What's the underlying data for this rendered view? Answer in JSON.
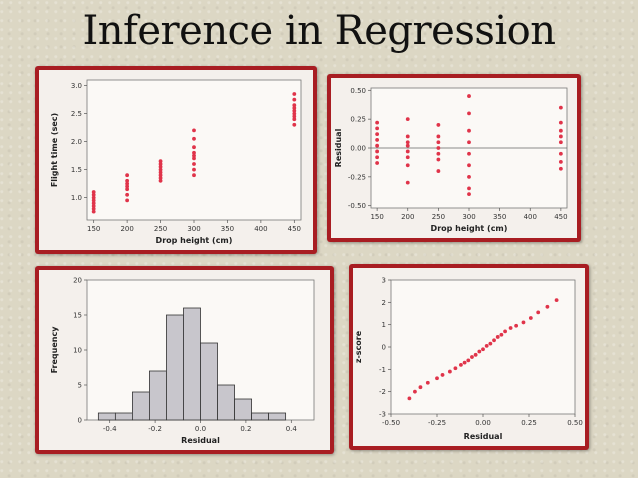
{
  "page": {
    "title": "Inference in Regression"
  },
  "chart_data": [
    {
      "id": "scatter",
      "type": "scatter",
      "xlabel": "Drop height (cm)",
      "ylabel": "Flight time (sec)",
      "xlim": [
        140,
        460
      ],
      "ylim": [
        0.6,
        3.1
      ],
      "xticks": [
        150,
        200,
        250,
        300,
        350,
        400,
        450
      ],
      "yticks": [
        1.0,
        1.5,
        2.0,
        2.5,
        3.0
      ],
      "ytick_labels": [
        "1.0",
        "1.5",
        "2.0",
        "2.5",
        "3.0"
      ],
      "point_color": "#e0344a",
      "points": [
        [
          150,
          0.75
        ],
        [
          150,
          0.8
        ],
        [
          150,
          0.85
        ],
        [
          150,
          0.9
        ],
        [
          150,
          0.95
        ],
        [
          150,
          1.0
        ],
        [
          150,
          1.05
        ],
        [
          150,
          1.1
        ],
        [
          200,
          0.95
        ],
        [
          200,
          1.05
        ],
        [
          200,
          1.15
        ],
        [
          200,
          1.2
        ],
        [
          200,
          1.25
        ],
        [
          200,
          1.3
        ],
        [
          200,
          1.4
        ],
        [
          250,
          1.3
        ],
        [
          250,
          1.35
        ],
        [
          250,
          1.4
        ],
        [
          250,
          1.45
        ],
        [
          250,
          1.5
        ],
        [
          250,
          1.55
        ],
        [
          250,
          1.6
        ],
        [
          250,
          1.65
        ],
        [
          300,
          1.4
        ],
        [
          300,
          1.5
        ],
        [
          300,
          1.6
        ],
        [
          300,
          1.7
        ],
        [
          300,
          1.75
        ],
        [
          300,
          1.8
        ],
        [
          300,
          1.9
        ],
        [
          300,
          2.05
        ],
        [
          300,
          2.2
        ],
        [
          450,
          2.3
        ],
        [
          450,
          2.4
        ],
        [
          450,
          2.45
        ],
        [
          450,
          2.5
        ],
        [
          450,
          2.55
        ],
        [
          450,
          2.6
        ],
        [
          450,
          2.65
        ],
        [
          450,
          2.75
        ],
        [
          450,
          2.85
        ]
      ]
    },
    {
      "id": "residual_plot",
      "type": "scatter",
      "xlabel": "Drop height (cm)",
      "ylabel": "Residual",
      "xlim": [
        140,
        460
      ],
      "ylim": [
        -0.52,
        0.52
      ],
      "xticks": [
        150,
        200,
        250,
        300,
        350,
        400,
        450
      ],
      "yticks": [
        -0.5,
        -0.25,
        0.0,
        0.25,
        0.5
      ],
      "ytick_labels": [
        "-0.50",
        "-0.25",
        "0.00",
        "0.25",
        "0.50"
      ],
      "reference_line_y": 0,
      "point_color": "#e0344a",
      "points": [
        [
          150,
          0.22
        ],
        [
          150,
          0.17
        ],
        [
          150,
          0.12
        ],
        [
          150,
          0.07
        ],
        [
          150,
          0.02
        ],
        [
          150,
          -0.03
        ],
        [
          150,
          -0.08
        ],
        [
          150,
          -0.13
        ],
        [
          200,
          0.25
        ],
        [
          200,
          0.1
        ],
        [
          200,
          0.05
        ],
        [
          200,
          0.02
        ],
        [
          200,
          -0.03
        ],
        [
          200,
          -0.08
        ],
        [
          200,
          -0.15
        ],
        [
          200,
          -0.3
        ],
        [
          250,
          0.2
        ],
        [
          250,
          0.1
        ],
        [
          250,
          0.05
        ],
        [
          250,
          0.0
        ],
        [
          250,
          -0.05
        ],
        [
          250,
          -0.1
        ],
        [
          250,
          -0.2
        ],
        [
          300,
          0.45
        ],
        [
          300,
          0.3
        ],
        [
          300,
          0.15
        ],
        [
          300,
          0.05
        ],
        [
          300,
          -0.05
        ],
        [
          300,
          -0.15
        ],
        [
          300,
          -0.25
        ],
        [
          300,
          -0.35
        ],
        [
          300,
          -0.4
        ],
        [
          450,
          0.35
        ],
        [
          450,
          0.22
        ],
        [
          450,
          0.15
        ],
        [
          450,
          0.1
        ],
        [
          450,
          0.05
        ],
        [
          450,
          -0.05
        ],
        [
          450,
          -0.12
        ],
        [
          450,
          -0.18
        ]
      ]
    },
    {
      "id": "histogram",
      "type": "bar",
      "xlabel": "Residual",
      "ylabel": "Frequency",
      "xlim": [
        -0.5,
        0.5
      ],
      "ylim": [
        0,
        20
      ],
      "xticks": [
        -0.4,
        -0.2,
        0.0,
        0.2,
        0.4
      ],
      "xtick_labels": [
        "-0.4",
        "-0.2",
        "0.0",
        "0.2",
        "0.4"
      ],
      "yticks": [
        0,
        5,
        10,
        15,
        20
      ],
      "bar_color": "#c8c6cc",
      "bin_width": 0.075,
      "bins": [
        [
          -0.45,
          1
        ],
        [
          -0.375,
          1
        ],
        [
          -0.3,
          4
        ],
        [
          -0.225,
          7
        ],
        [
          -0.15,
          15
        ],
        [
          -0.075,
          16
        ],
        [
          0.0,
          11
        ],
        [
          0.075,
          5
        ],
        [
          0.15,
          3
        ],
        [
          0.225,
          1
        ],
        [
          0.3,
          1
        ]
      ]
    },
    {
      "id": "normal_prob_plot",
      "type": "scatter",
      "xlabel": "Residual",
      "ylabel": "z-score",
      "xlim": [
        -0.5,
        0.5
      ],
      "ylim": [
        -3,
        3
      ],
      "xticks": [
        -0.5,
        -0.25,
        0.0,
        0.25,
        0.5
      ],
      "xtick_labels": [
        "-0.50",
        "-0.25",
        "0.00",
        "0.25",
        "0.50"
      ],
      "yticks": [
        -3,
        -2,
        -1,
        0,
        1,
        2,
        3
      ],
      "point_color": "#e0344a",
      "points": [
        [
          -0.4,
          -2.3
        ],
        [
          -0.37,
          -2.0
        ],
        [
          -0.34,
          -1.8
        ],
        [
          -0.3,
          -1.6
        ],
        [
          -0.25,
          -1.4
        ],
        [
          -0.22,
          -1.25
        ],
        [
          -0.18,
          -1.1
        ],
        [
          -0.15,
          -0.95
        ],
        [
          -0.12,
          -0.8
        ],
        [
          -0.1,
          -0.7
        ],
        [
          -0.08,
          -0.6
        ],
        [
          -0.06,
          -0.45
        ],
        [
          -0.04,
          -0.35
        ],
        [
          -0.02,
          -0.2
        ],
        [
          0.0,
          -0.1
        ],
        [
          0.02,
          0.05
        ],
        [
          0.04,
          0.15
        ],
        [
          0.06,
          0.3
        ],
        [
          0.08,
          0.45
        ],
        [
          0.1,
          0.55
        ],
        [
          0.12,
          0.7
        ],
        [
          0.15,
          0.85
        ],
        [
          0.18,
          0.95
        ],
        [
          0.22,
          1.1
        ],
        [
          0.26,
          1.3
        ],
        [
          0.3,
          1.55
        ],
        [
          0.35,
          1.8
        ],
        [
          0.4,
          2.1
        ]
      ]
    }
  ]
}
